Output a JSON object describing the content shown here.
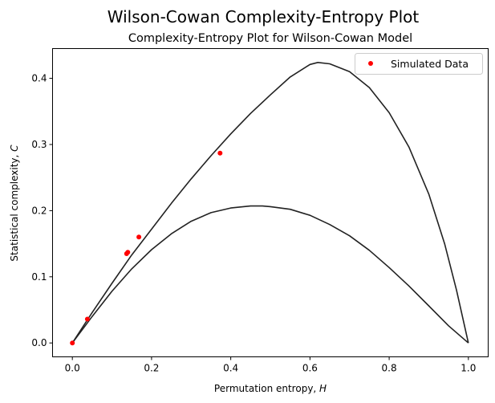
{
  "figure": {
    "suptitle": "Wilson-Cowan Complexity-Entropy Plot"
  },
  "chart_data": {
    "type": "scatter",
    "title": "Complexity-Entropy Plot for Wilson-Cowan Model",
    "xlabel_text": "Permutation entropy, ",
    "xlabel_var": "H",
    "ylabel_text": "Statistical complexity, ",
    "ylabel_var": "C",
    "xlim": [
      -0.05,
      1.05
    ],
    "ylim": [
      -0.021,
      0.445
    ],
    "xticks": [
      0.0,
      0.2,
      0.4,
      0.6,
      0.8,
      1.0
    ],
    "xtick_labels": [
      "0.0",
      "0.2",
      "0.4",
      "0.6",
      "0.8",
      "1.0"
    ],
    "yticks": [
      0.0,
      0.1,
      0.2,
      0.3,
      0.4
    ],
    "ytick_labels": [
      "0.0",
      "0.1",
      "0.2",
      "0.3",
      "0.4"
    ],
    "grid": false,
    "legend_position": "top-right",
    "series": [
      {
        "name": "Simulated Data",
        "kind": "scatter",
        "color": "#ff0000",
        "points": [
          {
            "x": 0.0,
            "y": 0.0
          },
          {
            "x": 0.038,
            "y": 0.036
          },
          {
            "x": 0.137,
            "y": 0.135
          },
          {
            "x": 0.14,
            "y": 0.137
          },
          {
            "x": 0.168,
            "y": 0.16
          },
          {
            "x": 0.373,
            "y": 0.287
          }
        ]
      },
      {
        "kind": "line",
        "color": "#222222",
        "points": [
          {
            "x": 0.0,
            "y": 0.0
          },
          {
            "x": 0.05,
            "y": 0.046
          },
          {
            "x": 0.1,
            "y": 0.09
          },
          {
            "x": 0.15,
            "y": 0.133
          },
          {
            "x": 0.2,
            "y": 0.172
          },
          {
            "x": 0.25,
            "y": 0.211
          },
          {
            "x": 0.3,
            "y": 0.248
          },
          {
            "x": 0.35,
            "y": 0.283
          },
          {
            "x": 0.4,
            "y": 0.316
          },
          {
            "x": 0.45,
            "y": 0.347
          },
          {
            "x": 0.5,
            "y": 0.375
          },
          {
            "x": 0.55,
            "y": 0.402
          },
          {
            "x": 0.6,
            "y": 0.421
          },
          {
            "x": 0.62,
            "y": 0.424
          },
          {
            "x": 0.65,
            "y": 0.422
          },
          {
            "x": 0.7,
            "y": 0.41
          },
          {
            "x": 0.75,
            "y": 0.386
          },
          {
            "x": 0.8,
            "y": 0.348
          },
          {
            "x": 0.85,
            "y": 0.296
          },
          {
            "x": 0.9,
            "y": 0.225
          },
          {
            "x": 0.94,
            "y": 0.15
          },
          {
            "x": 0.97,
            "y": 0.08
          },
          {
            "x": 1.0,
            "y": 0.0
          }
        ]
      },
      {
        "kind": "line",
        "color": "#222222",
        "points": [
          {
            "x": 0.0,
            "y": 0.0
          },
          {
            "x": 0.05,
            "y": 0.04
          },
          {
            "x": 0.1,
            "y": 0.078
          },
          {
            "x": 0.15,
            "y": 0.112
          },
          {
            "x": 0.2,
            "y": 0.141
          },
          {
            "x": 0.25,
            "y": 0.165
          },
          {
            "x": 0.3,
            "y": 0.184
          },
          {
            "x": 0.35,
            "y": 0.197
          },
          {
            "x": 0.4,
            "y": 0.204
          },
          {
            "x": 0.45,
            "y": 0.207
          },
          {
            "x": 0.48,
            "y": 0.207
          },
          {
            "x": 0.5,
            "y": 0.206
          },
          {
            "x": 0.55,
            "y": 0.202
          },
          {
            "x": 0.6,
            "y": 0.193
          },
          {
            "x": 0.65,
            "y": 0.179
          },
          {
            "x": 0.7,
            "y": 0.162
          },
          {
            "x": 0.75,
            "y": 0.14
          },
          {
            "x": 0.8,
            "y": 0.114
          },
          {
            "x": 0.85,
            "y": 0.086
          },
          {
            "x": 0.9,
            "y": 0.056
          },
          {
            "x": 0.95,
            "y": 0.026
          },
          {
            "x": 1.0,
            "y": 0.0
          }
        ]
      }
    ]
  }
}
